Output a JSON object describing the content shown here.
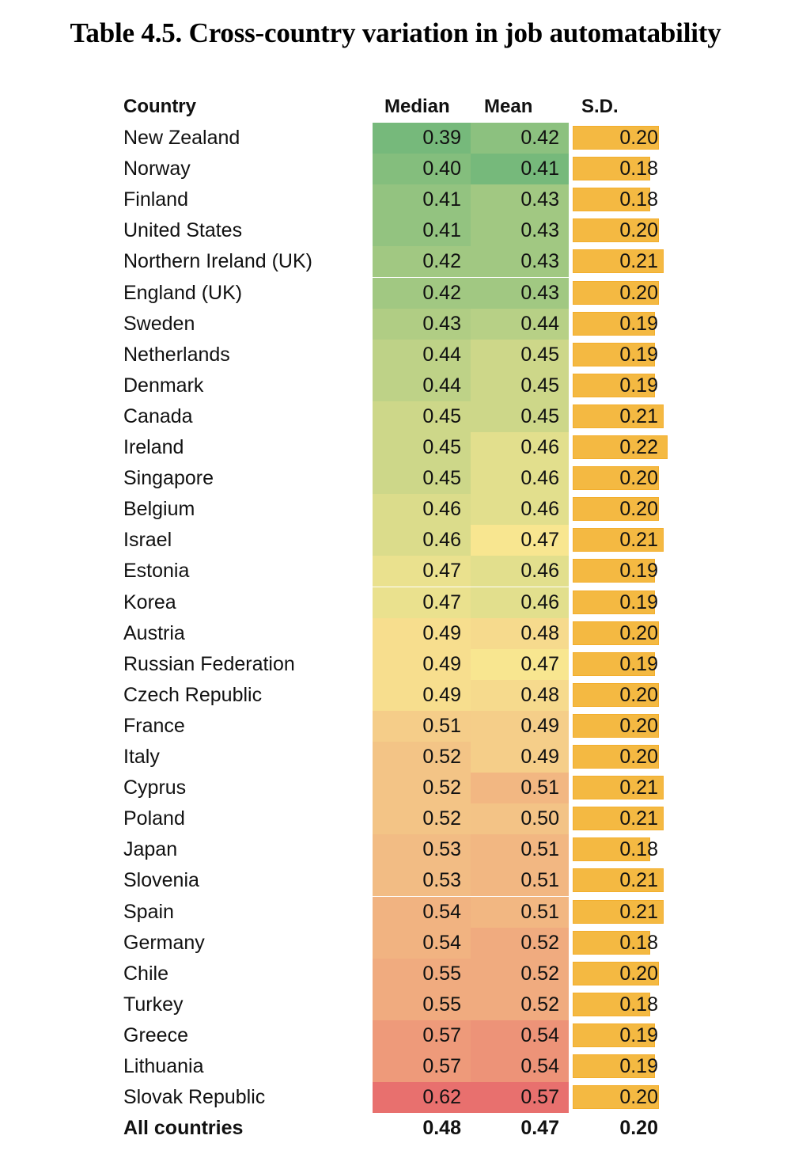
{
  "title": "Table 4.5. Cross-country variation in job automatability",
  "headers": {
    "country": "Country",
    "median": "Median",
    "mean": "Mean",
    "sd": "S.D."
  },
  "color_scale": {
    "low": "#76B97B",
    "mid": "#F8E690",
    "high": "#E8706E",
    "sd_bar": "#F4B942"
  },
  "rows": [
    {
      "country": "New Zealand",
      "median": "0.39",
      "mean": "0.42",
      "sd": "0.20"
    },
    {
      "country": "Norway",
      "median": "0.40",
      "mean": "0.41",
      "sd": "0.18"
    },
    {
      "country": "Finland",
      "median": "0.41",
      "mean": "0.43",
      "sd": "0.18"
    },
    {
      "country": "United States",
      "median": "0.41",
      "mean": "0.43",
      "sd": "0.20"
    },
    {
      "country": "Northern Ireland (UK)",
      "median": "0.42",
      "mean": "0.43",
      "sd": "0.21"
    },
    {
      "country": "England (UK)",
      "median": "0.42",
      "mean": "0.43",
      "sd": "0.20"
    },
    {
      "country": "Sweden",
      "median": "0.43",
      "mean": "0.44",
      "sd": "0.19"
    },
    {
      "country": "Netherlands",
      "median": "0.44",
      "mean": "0.45",
      "sd": "0.19"
    },
    {
      "country": "Denmark",
      "median": "0.44",
      "mean": "0.45",
      "sd": "0.19"
    },
    {
      "country": "Canada",
      "median": "0.45",
      "mean": "0.45",
      "sd": "0.21"
    },
    {
      "country": "Ireland",
      "median": "0.45",
      "mean": "0.46",
      "sd": "0.22"
    },
    {
      "country": "Singapore",
      "median": "0.45",
      "mean": "0.46",
      "sd": "0.20"
    },
    {
      "country": "Belgium",
      "median": "0.46",
      "mean": "0.46",
      "sd": "0.20"
    },
    {
      "country": "Israel",
      "median": "0.46",
      "mean": "0.47",
      "sd": "0.21"
    },
    {
      "country": "Estonia",
      "median": "0.47",
      "mean": "0.46",
      "sd": "0.19"
    },
    {
      "country": "Korea",
      "median": "0.47",
      "mean": "0.46",
      "sd": "0.19"
    },
    {
      "country": "Austria",
      "median": "0.49",
      "mean": "0.48",
      "sd": "0.20"
    },
    {
      "country": "Russian Federation",
      "median": "0.49",
      "mean": "0.47",
      "sd": "0.19"
    },
    {
      "country": "Czech Republic",
      "median": "0.49",
      "mean": "0.48",
      "sd": "0.20"
    },
    {
      "country": "France",
      "median": "0.51",
      "mean": "0.49",
      "sd": "0.20"
    },
    {
      "country": "Italy",
      "median": "0.52",
      "mean": "0.49",
      "sd": "0.20"
    },
    {
      "country": "Cyprus",
      "median": "0.52",
      "mean": "0.51",
      "sd": "0.21"
    },
    {
      "country": "Poland",
      "median": "0.52",
      "mean": "0.50",
      "sd": "0.21"
    },
    {
      "country": "Japan",
      "median": "0.53",
      "mean": "0.51",
      "sd": "0.18"
    },
    {
      "country": "Slovenia",
      "median": "0.53",
      "mean": "0.51",
      "sd": "0.21"
    },
    {
      "country": "Spain",
      "median": "0.54",
      "mean": "0.51",
      "sd": "0.21"
    },
    {
      "country": "Germany",
      "median": "0.54",
      "mean": "0.52",
      "sd": "0.18"
    },
    {
      "country": "Chile",
      "median": "0.55",
      "mean": "0.52",
      "sd": "0.20"
    },
    {
      "country": "Turkey",
      "median": "0.55",
      "mean": "0.52",
      "sd": "0.18"
    },
    {
      "country": "Greece",
      "median": "0.57",
      "mean": "0.54",
      "sd": "0.19"
    },
    {
      "country": "Lithuania",
      "median": "0.57",
      "mean": "0.54",
      "sd": "0.19"
    },
    {
      "country": "Slovak Republic",
      "median": "0.62",
      "mean": "0.57",
      "sd": "0.20"
    }
  ],
  "total": {
    "country": "All countries",
    "median": "0.48",
    "mean": "0.47",
    "sd": "0.20"
  }
}
